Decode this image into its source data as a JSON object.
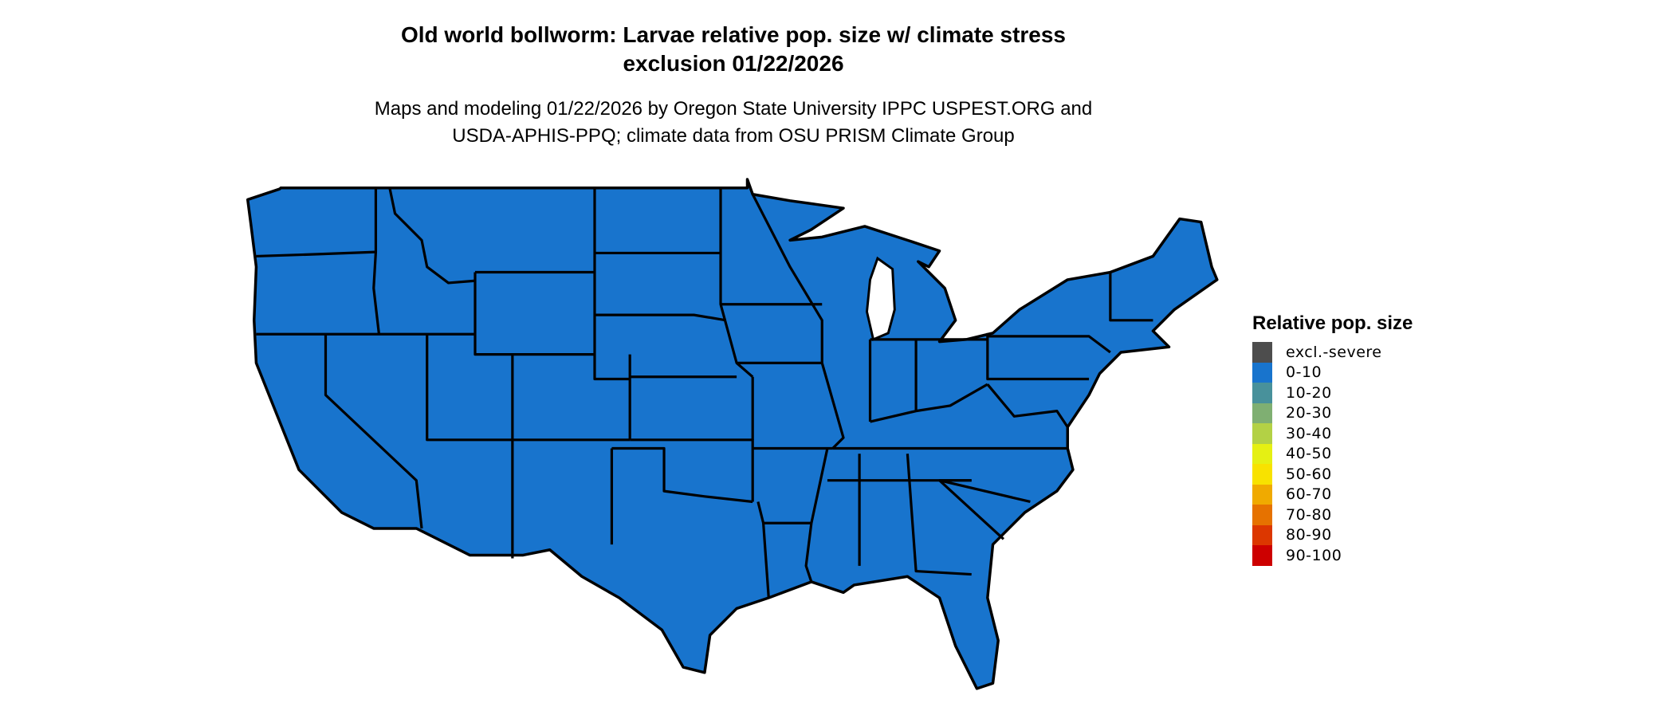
{
  "title": {
    "line1": "Old world bollworm: Larvae relative pop. size w/ climate stress",
    "line2": "exclusion 01/22/2026"
  },
  "subtitle": {
    "line1": "Maps and modeling 01/22/2026 by Oregon State University IPPC USPEST.ORG and",
    "line2": "USDA-APHIS-PPQ; climate data from OSU PRISM Climate Group"
  },
  "map": {
    "region": "Contiguous United States",
    "fill_category": "0-10",
    "fill_color": "#1874CD",
    "border_color": "#000000"
  },
  "legend": {
    "title": "Relative pop. size",
    "items": [
      {
        "label": "excl.-severe",
        "color": "#4D4D4D"
      },
      {
        "label": "0-10",
        "color": "#1874CD"
      },
      {
        "label": "10-20",
        "color": "#48919B"
      },
      {
        "label": "20-30",
        "color": "#7FAF72"
      },
      {
        "label": "30-40",
        "color": "#B3D145"
      },
      {
        "label": "40-50",
        "color": "#E5F013"
      },
      {
        "label": "50-60",
        "color": "#F8E200"
      },
      {
        "label": "60-70",
        "color": "#F0AA00"
      },
      {
        "label": "70-80",
        "color": "#E67200"
      },
      {
        "label": "80-90",
        "color": "#DC3700"
      },
      {
        "label": "90-100",
        "color": "#CD0000"
      }
    ]
  }
}
